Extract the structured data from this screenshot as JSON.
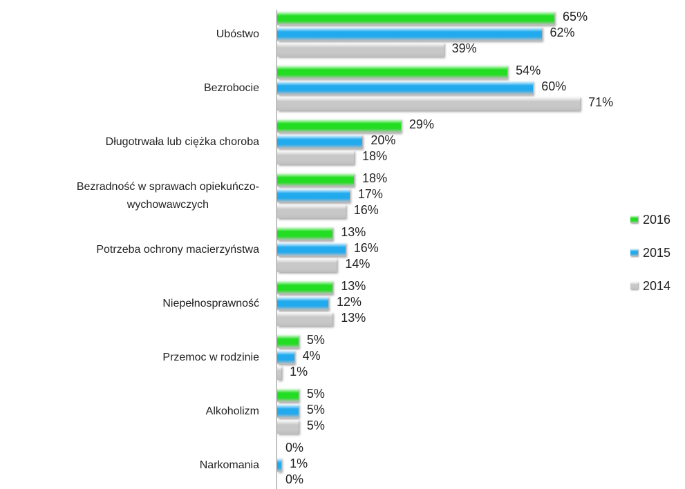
{
  "chart_data": {
    "type": "bar",
    "orientation": "horizontal",
    "categories": [
      "Ubóstwo",
      "Bezrobocie",
      "Długotrwała lub ciężka choroba",
      "Bezradność w sprawach opiekuńczo-\nwychowawczych",
      "Potrzeba ochrony macierzyństwa",
      "Niepełnosprawność",
      "Przemoc w rodzinie",
      "Alkoholizm",
      "Narkomania"
    ],
    "series": [
      {
        "name": "2016",
        "color": "#22dd22",
        "values": [
          65,
          54,
          29,
          18,
          13,
          13,
          5,
          5,
          0
        ],
        "value_labels": [
          "65%",
          "54%",
          "29%",
          "18%",
          "13%",
          "13%",
          "5%",
          "5%",
          "0%"
        ]
      },
      {
        "name": "2015",
        "color": "#22aaee",
        "values": [
          62,
          60,
          20,
          17,
          16,
          12,
          4,
          5,
          1
        ],
        "value_labels": [
          "62%",
          "60%",
          "20%",
          "17%",
          "16%",
          "12%",
          "4%",
          "5%",
          "1%"
        ]
      },
      {
        "name": "2014",
        "color": "#c8c8c8",
        "values": [
          39,
          71,
          18,
          16,
          14,
          13,
          1,
          5,
          0
        ],
        "value_labels": [
          "39%",
          "71%",
          "18%",
          "16%",
          "14%",
          "13%",
          "1%",
          "5%",
          "0%"
        ]
      }
    ],
    "legend": "right"
  }
}
